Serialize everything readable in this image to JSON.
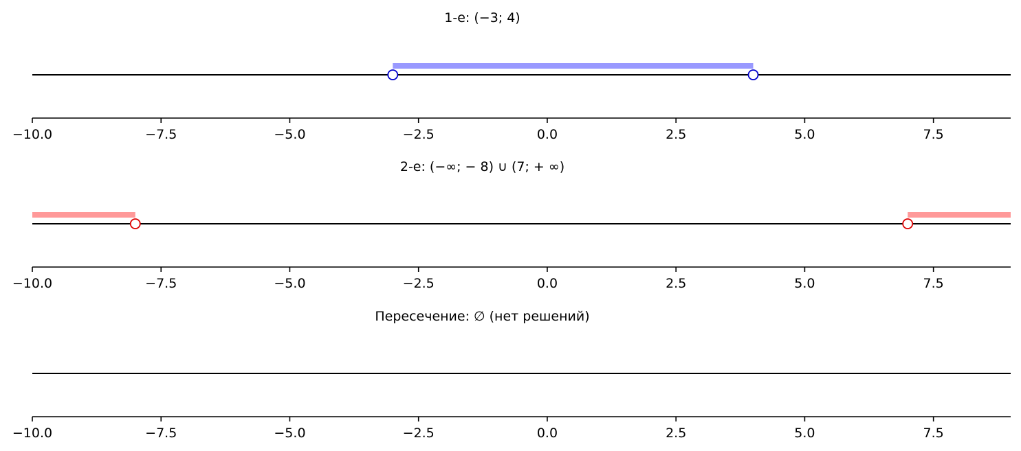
{
  "chart_data": [
    {
      "type": "number-line",
      "title": "1-е: (−3; 4)",
      "xlim": [
        -10,
        9
      ],
      "ticks": [
        "−10.0",
        "−7.5",
        "−5.0",
        "−2.5",
        "0.0",
        "2.5",
        "5.0",
        "7.5"
      ],
      "tick_values": [
        -10,
        -7.5,
        -5,
        -2.5,
        0,
        2.5,
        5,
        7.5
      ],
      "color": "#0000cc",
      "band_color": "#9999ff",
      "intervals": [
        [
          -3,
          4
        ]
      ],
      "open_points": [
        -3,
        4
      ]
    },
    {
      "type": "number-line",
      "title": "2-е: (−∞; − 8) ∪ (7; + ∞)",
      "xlim": [
        -10,
        9
      ],
      "ticks": [
        "−10.0",
        "−7.5",
        "−5.0",
        "−2.5",
        "0.0",
        "2.5",
        "5.0",
        "7.5"
      ],
      "tick_values": [
        -10,
        -7.5,
        -5,
        -2.5,
        0,
        2.5,
        5,
        7.5
      ],
      "color": "#dd0000",
      "band_color": "#ff9999",
      "intervals": [
        [
          -10,
          -8
        ],
        [
          7,
          9
        ]
      ],
      "open_points": [
        -8,
        7
      ]
    },
    {
      "type": "number-line",
      "title": "Пересечение: ∅ (нет решений)",
      "xlim": [
        -10,
        9
      ],
      "ticks": [
        "−10.0",
        "−7.5",
        "−5.0",
        "−2.5",
        "0.0",
        "2.5",
        "5.0",
        "7.5"
      ],
      "tick_values": [
        -10,
        -7.5,
        -5,
        -2.5,
        0,
        2.5,
        5,
        7.5
      ],
      "color": "#000000",
      "band_color": "",
      "intervals": [],
      "open_points": []
    }
  ]
}
